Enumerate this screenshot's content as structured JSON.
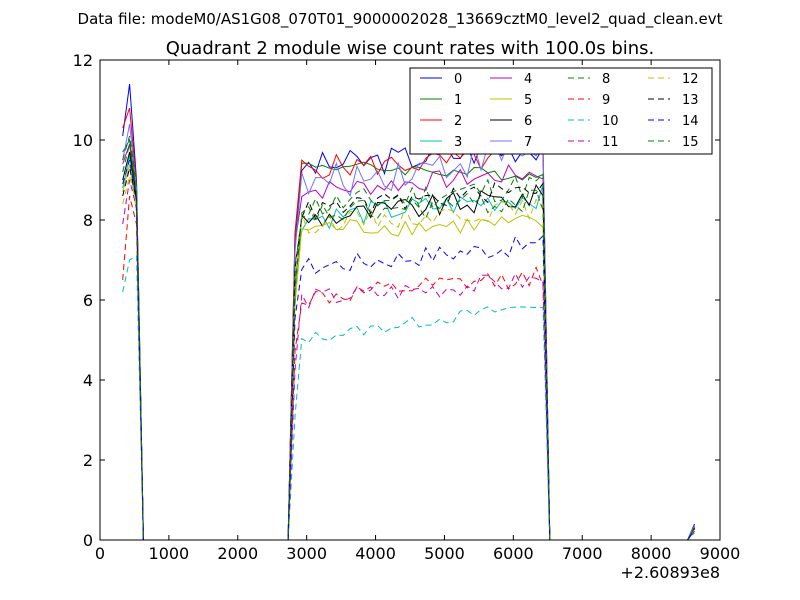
{
  "chart_data": {
    "type": "line",
    "suptitle": "Data file: modeM0/AS1G08_070T01_9000002028_13669cztM0_level2_quad_clean.evt",
    "title": "Quadrant 2 module wise count rates with 100.0s bins.",
    "xlabel": "",
    "ylabel": "",
    "xlim": [
      0,
      9000
    ],
    "ylim": [
      0,
      12
    ],
    "x_offset_label": "+2.60893e8",
    "x_ticks": [
      0,
      1000,
      2000,
      3000,
      4000,
      5000,
      6000,
      7000,
      8000,
      9000
    ],
    "x_tick_labels": [
      "0",
      "1000",
      "2000",
      "3000",
      "4000",
      "5000",
      "6000",
      "7000",
      "8000",
      "9000"
    ],
    "y_ticks": [
      0,
      2,
      4,
      6,
      8,
      10,
      12
    ],
    "y_tick_labels": [
      "0",
      "2",
      "4",
      "6",
      "8",
      "10",
      "12"
    ],
    "grid": false,
    "legend_position": "top-right",
    "legend_columns": 4,
    "segments": {
      "early": {
        "x": [
          330,
          430,
          530,
          630
        ],
        "falls_to": 0
      },
      "plateau": {
        "x_start": 2730,
        "x_rise": 2830,
        "x_end": 6430,
        "x_fall": 6530,
        "step": 100
      },
      "late": {
        "x": [
          8530,
          8630
        ]
      },
      "zero_spans": [
        [
          630,
          2730
        ],
        [
          6530,
          8530
        ]
      ]
    },
    "series": [
      {
        "name": "0",
        "color": "#0000ff",
        "style": "solid",
        "early": [
          10.1,
          11.4,
          9.0
        ],
        "level": 9.3,
        "noise": 0.35,
        "trend": 0.55,
        "late_end": 0.4
      },
      {
        "name": "1",
        "color": "#008000",
        "style": "solid",
        "early": [
          9.7,
          10.0,
          8.7
        ],
        "level": 9.4,
        "noise": 0.15,
        "trend": -0.3,
        "late_end": 0.32
      },
      {
        "name": "2",
        "color": "#ff0000",
        "style": "solid",
        "early": [
          10.3,
          10.8,
          8.9
        ],
        "level": 9.3,
        "noise": 0.3,
        "trend": 0.25,
        "late_end": 0.35
      },
      {
        "name": "3",
        "color": "#00bfbf",
        "style": "solid",
        "early": [
          8.8,
          9.6,
          8.4
        ],
        "level": 8.0,
        "noise": 0.3,
        "trend": 0.6,
        "late_end": 0.3
      },
      {
        "name": "4",
        "color": "#bf00bf",
        "style": "solid",
        "early": [
          9.4,
          9.9,
          8.5
        ],
        "level": 8.7,
        "noise": 0.25,
        "trend": 0.5,
        "late_end": 0.33
      },
      {
        "name": "5",
        "color": "#bfbf00",
        "style": "solid",
        "early": [
          8.7,
          9.4,
          8.2
        ],
        "level": 7.8,
        "noise": 0.25,
        "trend": 0.1,
        "late_end": 0.28
      },
      {
        "name": "6",
        "color": "#000000",
        "style": "solid",
        "early": [
          9.0,
          9.7,
          8.6
        ],
        "level": 8.0,
        "noise": 0.3,
        "trend": 0.6,
        "late_end": 0.3
      },
      {
        "name": "7",
        "color": "#7070ff",
        "style": "solid",
        "early": [
          9.5,
          10.4,
          8.8
        ],
        "level": 8.8,
        "noise": 0.45,
        "trend": 1.0,
        "late_end": 0.36
      },
      {
        "name": "8",
        "color": "#008000",
        "style": "dashed",
        "early": [
          9.2,
          9.9,
          8.6
        ],
        "level": 8.3,
        "noise": 0.35,
        "trend": 0.6,
        "late_end": 0.31
      },
      {
        "name": "9",
        "color": "#ff0000",
        "style": "dashed",
        "early": [
          6.5,
          8.6,
          7.9
        ],
        "level": 6.0,
        "noise": 0.25,
        "trend": 0.6,
        "late_end": 0.22
      },
      {
        "name": "10",
        "color": "#00bfbf",
        "style": "dashed",
        "early": [
          6.2,
          7.0,
          7.1
        ],
        "level": 5.0,
        "noise": 0.15,
        "trend": 0.9,
        "late_end": 0.18
      },
      {
        "name": "11",
        "color": "#bf00bf",
        "style": "dashed",
        "early": [
          7.9,
          9.0,
          8.3
        ],
        "level": 6.0,
        "noise": 0.25,
        "trend": 0.5,
        "late_end": 0.23
      },
      {
        "name": "12",
        "color": "#bfbf00",
        "style": "dashed",
        "early": [
          8.4,
          9.1,
          8.4
        ],
        "level": 7.9,
        "noise": 0.25,
        "trend": 0.4,
        "late_end": 0.28
      },
      {
        "name": "13",
        "color": "#000000",
        "style": "dashed",
        "early": [
          8.6,
          9.3,
          8.5
        ],
        "level": 8.2,
        "noise": 0.25,
        "trend": 0.6,
        "late_end": 0.29
      },
      {
        "name": "14",
        "color": "#0000ff",
        "style": "dashed",
        "early": [
          8.9,
          9.5,
          8.5
        ],
        "level": 6.8,
        "noise": 0.25,
        "trend": 0.6,
        "late_end": 0.26
      },
      {
        "name": "15",
        "color": "#008000",
        "style": "dashed",
        "early": [
          9.5,
          10.1,
          8.9
        ],
        "level": 8.1,
        "noise": 0.3,
        "trend": 0.4,
        "late_end": 0.3
      }
    ]
  }
}
